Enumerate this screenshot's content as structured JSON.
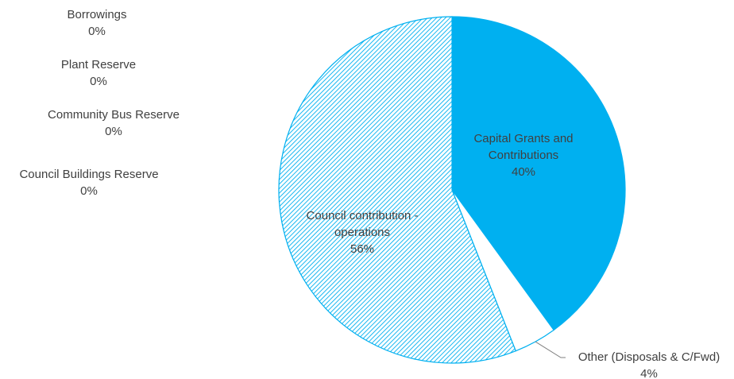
{
  "chart_data": {
    "type": "pie",
    "title": "",
    "slices": [
      {
        "name": "Capital Grants and Contributions",
        "value": 40,
        "label_lines": [
          "Capital Grants and",
          "Contributions"
        ],
        "pct_text": "40%",
        "fill": "solid",
        "color": "#00B0F0"
      },
      {
        "name": "Other (Disposals & C/Fwd)",
        "value": 4,
        "label_lines": [
          "Other (Disposals & C/Fwd)"
        ],
        "pct_text": "4%",
        "fill": "none",
        "color": "#ffffff"
      },
      {
        "name": "Council contribution - operations",
        "value": 56,
        "label_lines": [
          "Council contribution -",
          "operations"
        ],
        "pct_text": "56%",
        "fill": "hatched",
        "color": "#00B0F0"
      },
      {
        "name": "Council Buildings Reserve",
        "value": 0,
        "label_lines": [
          "Council Buildings Reserve"
        ],
        "pct_text": "0%"
      },
      {
        "name": "Community Bus Reserve",
        "value": 0,
        "label_lines": [
          "Community Bus Reserve"
        ],
        "pct_text": "0%"
      },
      {
        "name": "Plant Reserve",
        "value": 0,
        "label_lines": [
          "Plant Reserve"
        ],
        "pct_text": "0%"
      },
      {
        "name": "Borrowings",
        "value": 0,
        "label_lines": [
          "Borrowings"
        ],
        "pct_text": "0%"
      }
    ],
    "legend": "none",
    "colors": {
      "accent": "#00B0F0",
      "outline": "#00B0F0",
      "text": "#404040",
      "leader": "#7f7f7f"
    }
  }
}
